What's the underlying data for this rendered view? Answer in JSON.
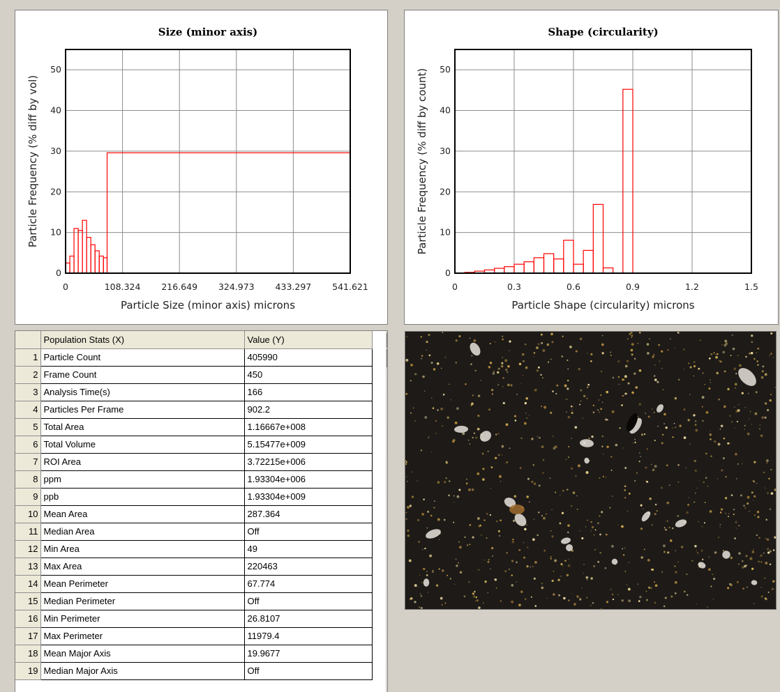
{
  "chart_data": [
    {
      "type": "bar",
      "title": "Size (minor axis)",
      "xlabel": "Particle Size (minor axis) microns",
      "ylabel": "Particle Frequency (% diff by vol)",
      "xlim": [
        0,
        541.621
      ],
      "ylim": [
        0,
        55
      ],
      "xticks": [
        "0",
        "108.324",
        "216.649",
        "324.973",
        "433.297",
        "541.621"
      ],
      "yticks": [
        "0",
        "10",
        "20",
        "30",
        "40",
        "50"
      ],
      "grid": true,
      "legend": "none",
      "bins": [
        {
          "x0": 0,
          "x1": 8,
          "y": 2.5
        },
        {
          "x0": 8,
          "x1": 16,
          "y": 4.2
        },
        {
          "x0": 16,
          "x1": 24,
          "y": 11
        },
        {
          "x0": 24,
          "x1": 32,
          "y": 10.5
        },
        {
          "x0": 32,
          "x1": 40,
          "y": 13
        },
        {
          "x0": 40,
          "x1": 48,
          "y": 8.8
        },
        {
          "x0": 48,
          "x1": 56,
          "y": 7
        },
        {
          "x0": 56,
          "x1": 64,
          "y": 5.5
        },
        {
          "x0": 64,
          "x1": 72,
          "y": 4.2
        },
        {
          "x0": 72,
          "x1": 79,
          "y": 3.8
        },
        {
          "x0": 79,
          "x1": 541.621,
          "y": 29.6
        }
      ]
    },
    {
      "type": "bar",
      "title": "Shape (circularity)",
      "xlabel": "Particle Shape (circularity) microns",
      "ylabel": "Particle Frequency (% diff by count)",
      "xlim": [
        0,
        1.5
      ],
      "ylim": [
        0,
        55
      ],
      "xticks": [
        "0",
        "0.3",
        "0.6",
        "0.9",
        "1.2",
        "1.5"
      ],
      "yticks": [
        "0",
        "10",
        "20",
        "30",
        "40",
        "50"
      ],
      "grid": true,
      "legend": "none",
      "bins": [
        {
          "x0": 0.05,
          "x1": 0.1,
          "y": 0.2
        },
        {
          "x0": 0.1,
          "x1": 0.15,
          "y": 0.5
        },
        {
          "x0": 0.15,
          "x1": 0.2,
          "y": 0.8
        },
        {
          "x0": 0.2,
          "x1": 0.25,
          "y": 1.2
        },
        {
          "x0": 0.25,
          "x1": 0.3,
          "y": 1.6
        },
        {
          "x0": 0.3,
          "x1": 0.35,
          "y": 2.2
        },
        {
          "x0": 0.35,
          "x1": 0.4,
          "y": 2.8
        },
        {
          "x0": 0.4,
          "x1": 0.45,
          "y": 3.8
        },
        {
          "x0": 0.45,
          "x1": 0.5,
          "y": 4.8
        },
        {
          "x0": 0.5,
          "x1": 0.55,
          "y": 3.5
        },
        {
          "x0": 0.55,
          "x1": 0.6,
          "y": 8.1
        },
        {
          "x0": 0.6,
          "x1": 0.65,
          "y": 2.2
        },
        {
          "x0": 0.65,
          "x1": 0.7,
          "y": 5.6
        },
        {
          "x0": 0.7,
          "x1": 0.75,
          "y": 16.9
        },
        {
          "x0": 0.75,
          "x1": 0.8,
          "y": 1.3
        },
        {
          "x0": 0.85,
          "x1": 0.9,
          "y": 45.2
        }
      ]
    }
  ],
  "styles": {
    "bar_color": "#ff0000",
    "grid_color": "#8c8c8c",
    "frame_color": "#000000",
    "window_bg": "#d4d0c8"
  },
  "stats_table": {
    "headers": [
      "Population Stats (X)",
      "Value (Y)"
    ],
    "rows": [
      {
        "num": "1",
        "label": "Particle Count",
        "value": "405990"
      },
      {
        "num": "2",
        "label": "Frame Count",
        "value": "450"
      },
      {
        "num": "3",
        "label": "Analysis Time(s)",
        "value": "166"
      },
      {
        "num": "4",
        "label": "Particles Per Frame",
        "value": "902.2"
      },
      {
        "num": "5",
        "label": "Total Area",
        "value": "1.16667e+008"
      },
      {
        "num": "6",
        "label": "Total Volume",
        "value": "5.15477e+009"
      },
      {
        "num": "7",
        "label": "ROI Area",
        "value": "3.72215e+006"
      },
      {
        "num": "8",
        "label": "ppm",
        "value": "1.93304e+006"
      },
      {
        "num": "9",
        "label": "ppb",
        "value": "1.93304e+009"
      },
      {
        "num": "10",
        "label": "Mean Area",
        "value": "287.364"
      },
      {
        "num": "11",
        "label": "Median Area",
        "value": "Off"
      },
      {
        "num": "12",
        "label": "Min Area",
        "value": "49"
      },
      {
        "num": "13",
        "label": "Max Area",
        "value": "220463"
      },
      {
        "num": "14",
        "label": "Mean Perimeter",
        "value": "67.774"
      },
      {
        "num": "15",
        "label": "Median Perimeter",
        "value": "Off"
      },
      {
        "num": "16",
        "label": "Min Perimeter",
        "value": "26.8107"
      },
      {
        "num": "17",
        "label": "Max Perimeter",
        "value": "11979.4"
      },
      {
        "num": "18",
        "label": "Mean Major Axis",
        "value": "19.9677"
      },
      {
        "num": "19",
        "label": "Median Major Axis",
        "value": "Off"
      }
    ]
  },
  "scrollbar": {
    "up_icon": "scroll-up-arrow-icon"
  },
  "micrograph": {
    "background": "#1d1a17"
  }
}
